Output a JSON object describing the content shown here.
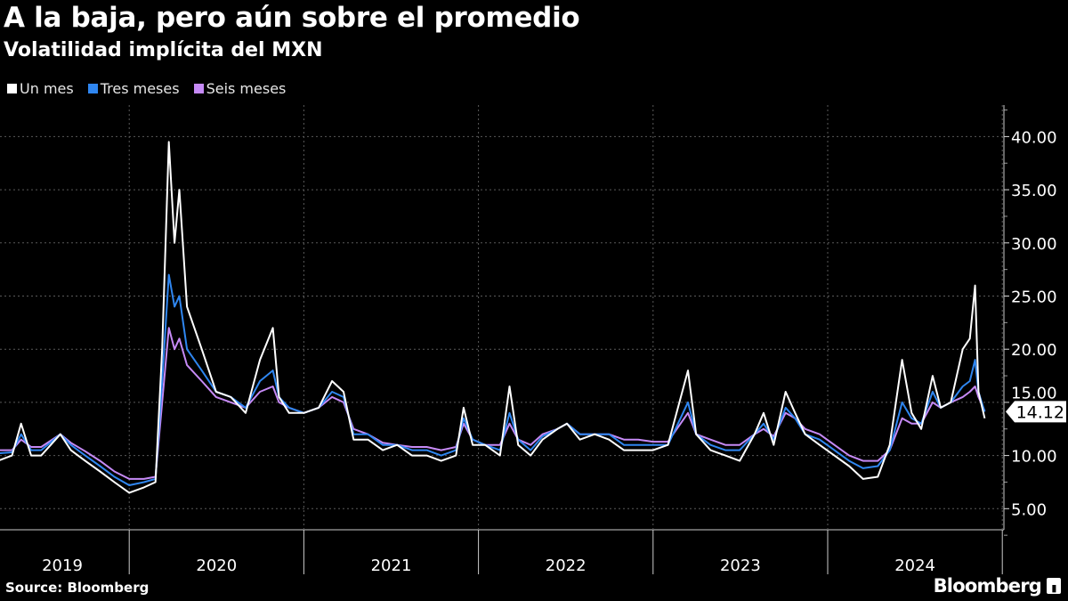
{
  "header": {
    "title": "A la baja, pero aún sobre el promedio",
    "subtitle": "Volatilidad implícita del MXN"
  },
  "footer": {
    "source": "Source: Bloomberg",
    "logo": "Bloomberg"
  },
  "colors": {
    "un_mes": "#ffffff",
    "tres_meses": "#2f86f0",
    "seis_meses": "#c68af6",
    "background": "#000000"
  },
  "chart_data": {
    "type": "line",
    "title": "A la baja, pero aún sobre el promedio",
    "subtitle": "Volatilidad implícita del MXN",
    "legend_position": "top-left",
    "grid": true,
    "y_axis_side": "right",
    "ylim": [
      2.5,
      43
    ],
    "y_ticks": [
      "5.00",
      "10.00",
      "15.00",
      "20.00",
      "25.00",
      "30.00",
      "35.00",
      "40.00"
    ],
    "x_ticks": [
      "2019",
      "2020",
      "2021",
      "2022",
      "2023",
      "2024"
    ],
    "last_value_label": "14.12",
    "x": [
      "2019-04-01",
      "2019-05-01",
      "2019-05-20",
      "2019-06-10",
      "2019-07-01",
      "2019-08-10",
      "2019-09-01",
      "2019-10-01",
      "2019-11-01",
      "2019-12-01",
      "2020-01-01",
      "2020-02-01",
      "2020-02-25",
      "2020-03-10",
      "2020-03-24",
      "2020-04-05",
      "2020-04-15",
      "2020-05-01",
      "2020-06-01",
      "2020-07-01",
      "2020-08-01",
      "2020-09-01",
      "2020-10-01",
      "2020-10-28",
      "2020-11-10",
      "2020-12-01",
      "2021-01-01",
      "2021-02-01",
      "2021-03-01",
      "2021-03-25",
      "2021-04-15",
      "2021-05-15",
      "2021-06-15",
      "2021-07-15",
      "2021-08-15",
      "2021-09-15",
      "2021-10-15",
      "2021-11-15",
      "2021-12-01",
      "2021-12-20",
      "2022-01-15",
      "2022-02-15",
      "2022-03-07",
      "2022-03-25",
      "2022-04-20",
      "2022-05-15",
      "2022-06-15",
      "2022-07-05",
      "2022-08-01",
      "2022-09-01",
      "2022-10-01",
      "2022-11-01",
      "2022-12-01",
      "2023-01-01",
      "2023-02-01",
      "2023-03-15",
      "2023-04-01",
      "2023-05-01",
      "2023-06-01",
      "2023-07-01",
      "2023-08-01",
      "2023-08-20",
      "2023-09-10",
      "2023-10-05",
      "2023-10-25",
      "2023-11-15",
      "2023-12-15",
      "2024-01-15",
      "2024-02-15",
      "2024-03-15",
      "2024-04-15",
      "2024-05-10",
      "2024-06-05",
      "2024-06-25",
      "2024-07-15",
      "2024-08-08",
      "2024-08-25",
      "2024-09-15",
      "2024-10-10",
      "2024-10-25",
      "2024-11-05",
      "2024-11-12",
      "2024-11-25"
    ],
    "series": [
      {
        "name": "Seis meses",
        "color": "#c68af6",
        "values": [
          10.5,
          10.5,
          11.5,
          10.8,
          10.8,
          12,
          11.2,
          10.4,
          9.5,
          8.5,
          7.8,
          7.8,
          8,
          15,
          22,
          20,
          21,
          18.5,
          17,
          15.5,
          15,
          14.5,
          16,
          16.5,
          15,
          14.5,
          14,
          14.5,
          15.5,
          15,
          12.5,
          12,
          11.2,
          11,
          10.8,
          10.8,
          10.5,
          10.8,
          13,
          11.5,
          11,
          11,
          13,
          11.5,
          11,
          12,
          12.5,
          13,
          12,
          12,
          12,
          11.5,
          11.5,
          11.3,
          11.3,
          14,
          12,
          11.5,
          11,
          11,
          12,
          12.5,
          11.8,
          14,
          13.5,
          12.5,
          12,
          11,
          10,
          9.5,
          9.5,
          10.5,
          13.5,
          13,
          13,
          15,
          14.5,
          15,
          15.5,
          16,
          16.5,
          15.5,
          14.2
        ]
      },
      {
        "name": "Tres meses",
        "color": "#2f86f0",
        "values": [
          10.2,
          10.3,
          12,
          10.5,
          10.5,
          12,
          11,
          10,
          9,
          8,
          7.2,
          7.5,
          7.8,
          17,
          27,
          24,
          25,
          20,
          18,
          16,
          15.5,
          14.5,
          17,
          18,
          15.5,
          14.5,
          14,
          14.5,
          16,
          15.5,
          12,
          12,
          11,
          11,
          10.5,
          10.5,
          10,
          10.5,
          13.5,
          11.5,
          11,
          10.5,
          14,
          11.5,
          10.5,
          11.8,
          12.5,
          13,
          12,
          12,
          12,
          11,
          11,
          11,
          11,
          15,
          12,
          11,
          10.5,
          10.5,
          12,
          13,
          11.5,
          14.5,
          13.5,
          12,
          11.5,
          10.5,
          9.5,
          8.8,
          9,
          10.5,
          15,
          13.5,
          13,
          16,
          14.5,
          15,
          16.5,
          17,
          19,
          16,
          14.12
        ]
      },
      {
        "name": "Un mes",
        "color": "#ffffff",
        "values": [
          9.5,
          10,
          13,
          10,
          10,
          12,
          10.5,
          9.5,
          8.5,
          7.5,
          6.5,
          7,
          7.5,
          20,
          39.5,
          30,
          35,
          24,
          20,
          16,
          15.5,
          14,
          19,
          22,
          15.5,
          14,
          14,
          14.5,
          17,
          16,
          11.5,
          11.5,
          10.5,
          11,
          10,
          10,
          9.5,
          10,
          14.5,
          11,
          11,
          10,
          16.5,
          11,
          10,
          11.5,
          12.5,
          13,
          11.5,
          12,
          11.5,
          10.5,
          10.5,
          10.5,
          11,
          18,
          12,
          10.5,
          10,
          9.5,
          12,
          14,
          11,
          16,
          14,
          12,
          11,
          10,
          9,
          7.8,
          8,
          11,
          19,
          14,
          12.5,
          17.5,
          14.5,
          15,
          20,
          21,
          26,
          16,
          13.5
        ]
      }
    ]
  }
}
